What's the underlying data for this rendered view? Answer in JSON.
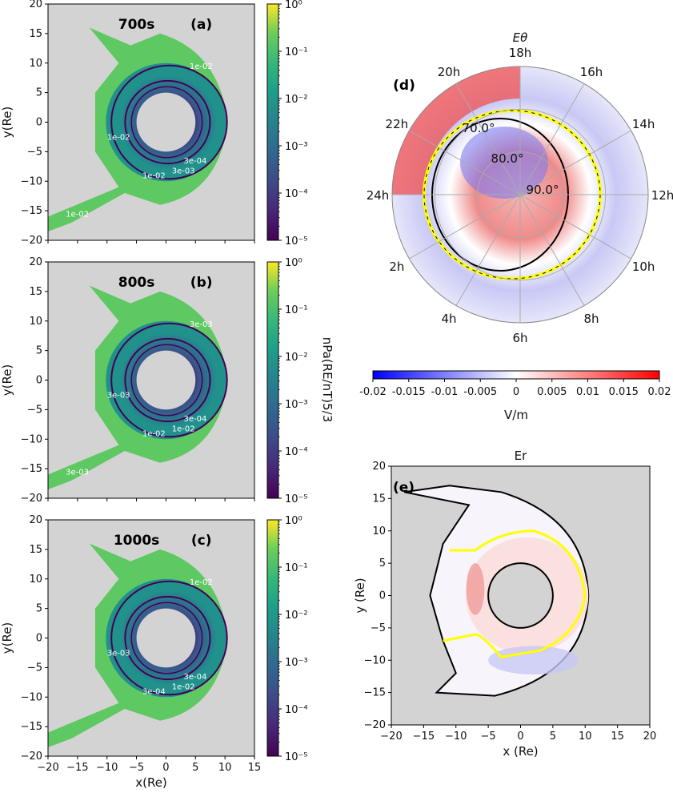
{
  "figure": {
    "left_panels": [
      {
        "id": "a",
        "time_label": "700s",
        "panel_label": "(a)",
        "ylabel": "y(Re)",
        "show_xlabel": false,
        "contour_labels": [
          "1e-02",
          "1e-02",
          "1e-02",
          "3e-04",
          "3e-03",
          "1e-02"
        ]
      },
      {
        "id": "b",
        "time_label": "800s",
        "panel_label": "(b)",
        "ylabel": "y(Re)",
        "show_xlabel": false,
        "contour_labels": [
          "3e-03",
          "3e-03",
          "1e-02",
          "3e-04",
          "1e-02",
          "3e-03"
        ]
      },
      {
        "id": "c",
        "time_label": "1000s",
        "panel_label": "(c)",
        "ylabel": "y(Re)",
        "xlabel": "x(Re)",
        "show_xlabel": true,
        "contour_labels": [
          "1e-02",
          "3e-03",
          "3e-04",
          "3e-04",
          "1e-02"
        ]
      }
    ],
    "left_colorbar": {
      "scale": "log",
      "ticks": [
        "10⁰",
        "10⁻¹",
        "10⁻²",
        "10⁻³",
        "10⁻⁴",
        "10⁻⁵"
      ],
      "label": "nPa(R_E/nT)^(5/3)",
      "label_display": "nPa(RE/nT)5/3",
      "colormap": "viridis",
      "range": [
        1e-05,
        1
      ]
    },
    "polar": {
      "title": "Eθ",
      "panel_label": "(d)",
      "hour_labels": [
        "18h",
        "16h",
        "14h",
        "12h",
        "10h",
        "8h",
        "6h",
        "4h",
        "2h",
        "24h",
        "22h",
        "20h"
      ],
      "lat_labels": [
        "70.0°",
        "80.0°",
        "90.0°"
      ]
    },
    "horiz_colorbar": {
      "ticks": [
        "-0.02",
        "-0.015",
        "-0.01",
        "-0.005",
        "0",
        "0.005",
        "0.01",
        "0.015",
        "0.02"
      ],
      "label": "V/m",
      "colormap": "bwr",
      "range": [
        -0.02,
        0.02
      ]
    },
    "er_panel": {
      "title": "Er",
      "panel_label": "(e)",
      "xlabel": "x (Re)",
      "ylabel": "y (Re)"
    }
  },
  "chart_data": [
    {
      "type": "heatmap",
      "title": "700s (a)",
      "xlabel": "",
      "ylabel": "y(Re)",
      "xlim": [
        -20,
        15
      ],
      "ylim": [
        -20,
        20
      ],
      "x_ticks": [
        "-20",
        "-15",
        "-10",
        "-5",
        "0",
        "5",
        "10",
        "15"
      ],
      "y_ticks": [
        "20",
        "15",
        "10",
        "5",
        "0",
        "-5",
        "-10",
        "-15",
        "-20"
      ],
      "colorbar": {
        "scale": "log",
        "range": [
          1e-05,
          1
        ],
        "label": "nPa(R_E/nT)^(5/3)"
      },
      "contour_levels": [
        "3e-04",
        "3e-03",
        "1e-02"
      ],
      "inner_boundary_radius_Re": 5
    },
    {
      "type": "heatmap",
      "title": "800s (b)",
      "xlabel": "",
      "ylabel": "y(Re)",
      "xlim": [
        -20,
        15
      ],
      "ylim": [
        -20,
        20
      ],
      "x_ticks": [
        "-20",
        "-15",
        "-10",
        "-5",
        "0",
        "5",
        "10",
        "15"
      ],
      "y_ticks": [
        "20",
        "15",
        "10",
        "5",
        "0",
        "-5",
        "-10",
        "-15",
        "-20"
      ],
      "colorbar": {
        "scale": "log",
        "range": [
          1e-05,
          1
        ],
        "label": "nPa(R_E/nT)^(5/3)"
      },
      "contour_levels": [
        "3e-04",
        "3e-03",
        "1e-02"
      ],
      "inner_boundary_radius_Re": 5
    },
    {
      "type": "heatmap",
      "title": "1000s (c)",
      "xlabel": "x(Re)",
      "ylabel": "y(Re)",
      "xlim": [
        -20,
        15
      ],
      "ylim": [
        -20,
        20
      ],
      "x_ticks": [
        "-20",
        "-15",
        "-10",
        "-5",
        "0",
        "5",
        "10",
        "15"
      ],
      "y_ticks": [
        "20",
        "15",
        "10",
        "5",
        "0",
        "-5",
        "-10",
        "-15",
        "-20"
      ],
      "colorbar": {
        "scale": "log",
        "range": [
          1e-05,
          1
        ],
        "label": "nPa(R_E/nT)^(5/3)"
      },
      "contour_levels": [
        "3e-04",
        "3e-03",
        "1e-02"
      ],
      "inner_boundary_radius_Re": 5
    },
    {
      "type": "heatmap",
      "title": "Eθ (d)",
      "projection": "polar",
      "angular_ticks": [
        "18h",
        "16h",
        "14h",
        "12h",
        "10h",
        "8h",
        "6h",
        "4h",
        "2h",
        "24h",
        "22h",
        "20h"
      ],
      "radial_ticks": [
        "70.0°",
        "80.0°",
        "90.0°"
      ],
      "colatitude_range_deg": [
        60,
        90
      ],
      "colorbar": {
        "range": [
          -0.02,
          0.02
        ],
        "label": "V/m",
        "ticks": [
          -0.02,
          -0.015,
          -0.01,
          -0.005,
          0,
          0.005,
          0.01,
          0.015,
          0.02
        ]
      }
    },
    {
      "type": "heatmap",
      "title": "Er (e)",
      "xlabel": "x (Re)",
      "ylabel": "y (Re)",
      "xlim": [
        -20,
        20
      ],
      "ylim": [
        -20,
        20
      ],
      "x_ticks": [
        "-20",
        "-15",
        "-10",
        "-5",
        "0",
        "5",
        "10",
        "15",
        "20"
      ],
      "y_ticks": [
        "20",
        "15",
        "10",
        "5",
        "0",
        "-5",
        "-10",
        "-15",
        "-20"
      ],
      "colorbar": {
        "range": [
          -0.02,
          0.02
        ],
        "label": "V/m"
      },
      "inner_boundary_radius_Re": 5
    }
  ]
}
